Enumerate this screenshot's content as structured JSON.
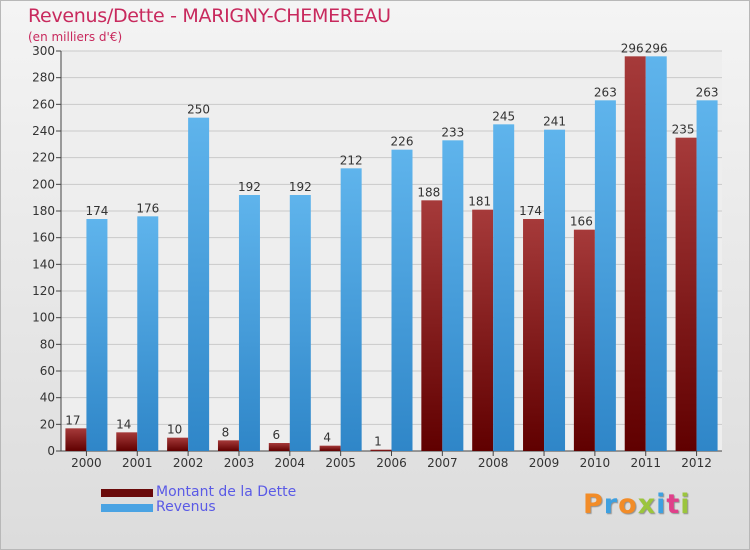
{
  "title": "Revenus/Dette - MARIGNY-CHEMEREAU",
  "subtitle": "(en milliers d'€)",
  "colors": {
    "title": "#c8295d",
    "dette_top": "#a63a3a",
    "dette_bottom": "#600000",
    "revenus_top": "#5fb4ec",
    "revenus_bottom": "#2f86c8",
    "legend_text": "#5a5ae6"
  },
  "legend": [
    {
      "label": "Montant de la Dette",
      "color": "#6a0a0a"
    },
    {
      "label": "Revenus",
      "color": "#4aa3e3"
    }
  ],
  "logo": {
    "letters": [
      {
        "char": "P",
        "color": "#f28c28"
      },
      {
        "char": "r",
        "color": "#3ea0e0"
      },
      {
        "char": "o",
        "color": "#f28c28"
      },
      {
        "char": "x",
        "color": "#9bc53d"
      },
      {
        "char": "i",
        "color": "#3ea0e0"
      },
      {
        "char": "t",
        "color": "#e0408a"
      },
      {
        "char": "i",
        "color": "#9bc53d"
      }
    ]
  },
  "chart_data": {
    "type": "bar",
    "title": "Revenus/Dette - MARIGNY-CHEMEREAU",
    "ylabel": "(en milliers d'€)",
    "xlabel": "",
    "categories": [
      "2000",
      "2001",
      "2002",
      "2003",
      "2004",
      "2005",
      "2006",
      "2007",
      "2008",
      "2009",
      "2010",
      "2011",
      "2012"
    ],
    "series": [
      {
        "name": "Montant de la Dette",
        "values": [
          17,
          14,
          10,
          8,
          6,
          4,
          1,
          188,
          181,
          174,
          166,
          296,
          235
        ]
      },
      {
        "name": "Revenus",
        "values": [
          174,
          176,
          250,
          192,
          192,
          212,
          226,
          233,
          245,
          241,
          263,
          296,
          263
        ]
      }
    ],
    "ylim": [
      0,
      300
    ],
    "yticks": [
      0,
      20,
      40,
      60,
      80,
      100,
      120,
      140,
      160,
      180,
      200,
      220,
      240,
      260,
      280,
      300
    ],
    "grid": true,
    "legend_position": "bottom-left"
  }
}
